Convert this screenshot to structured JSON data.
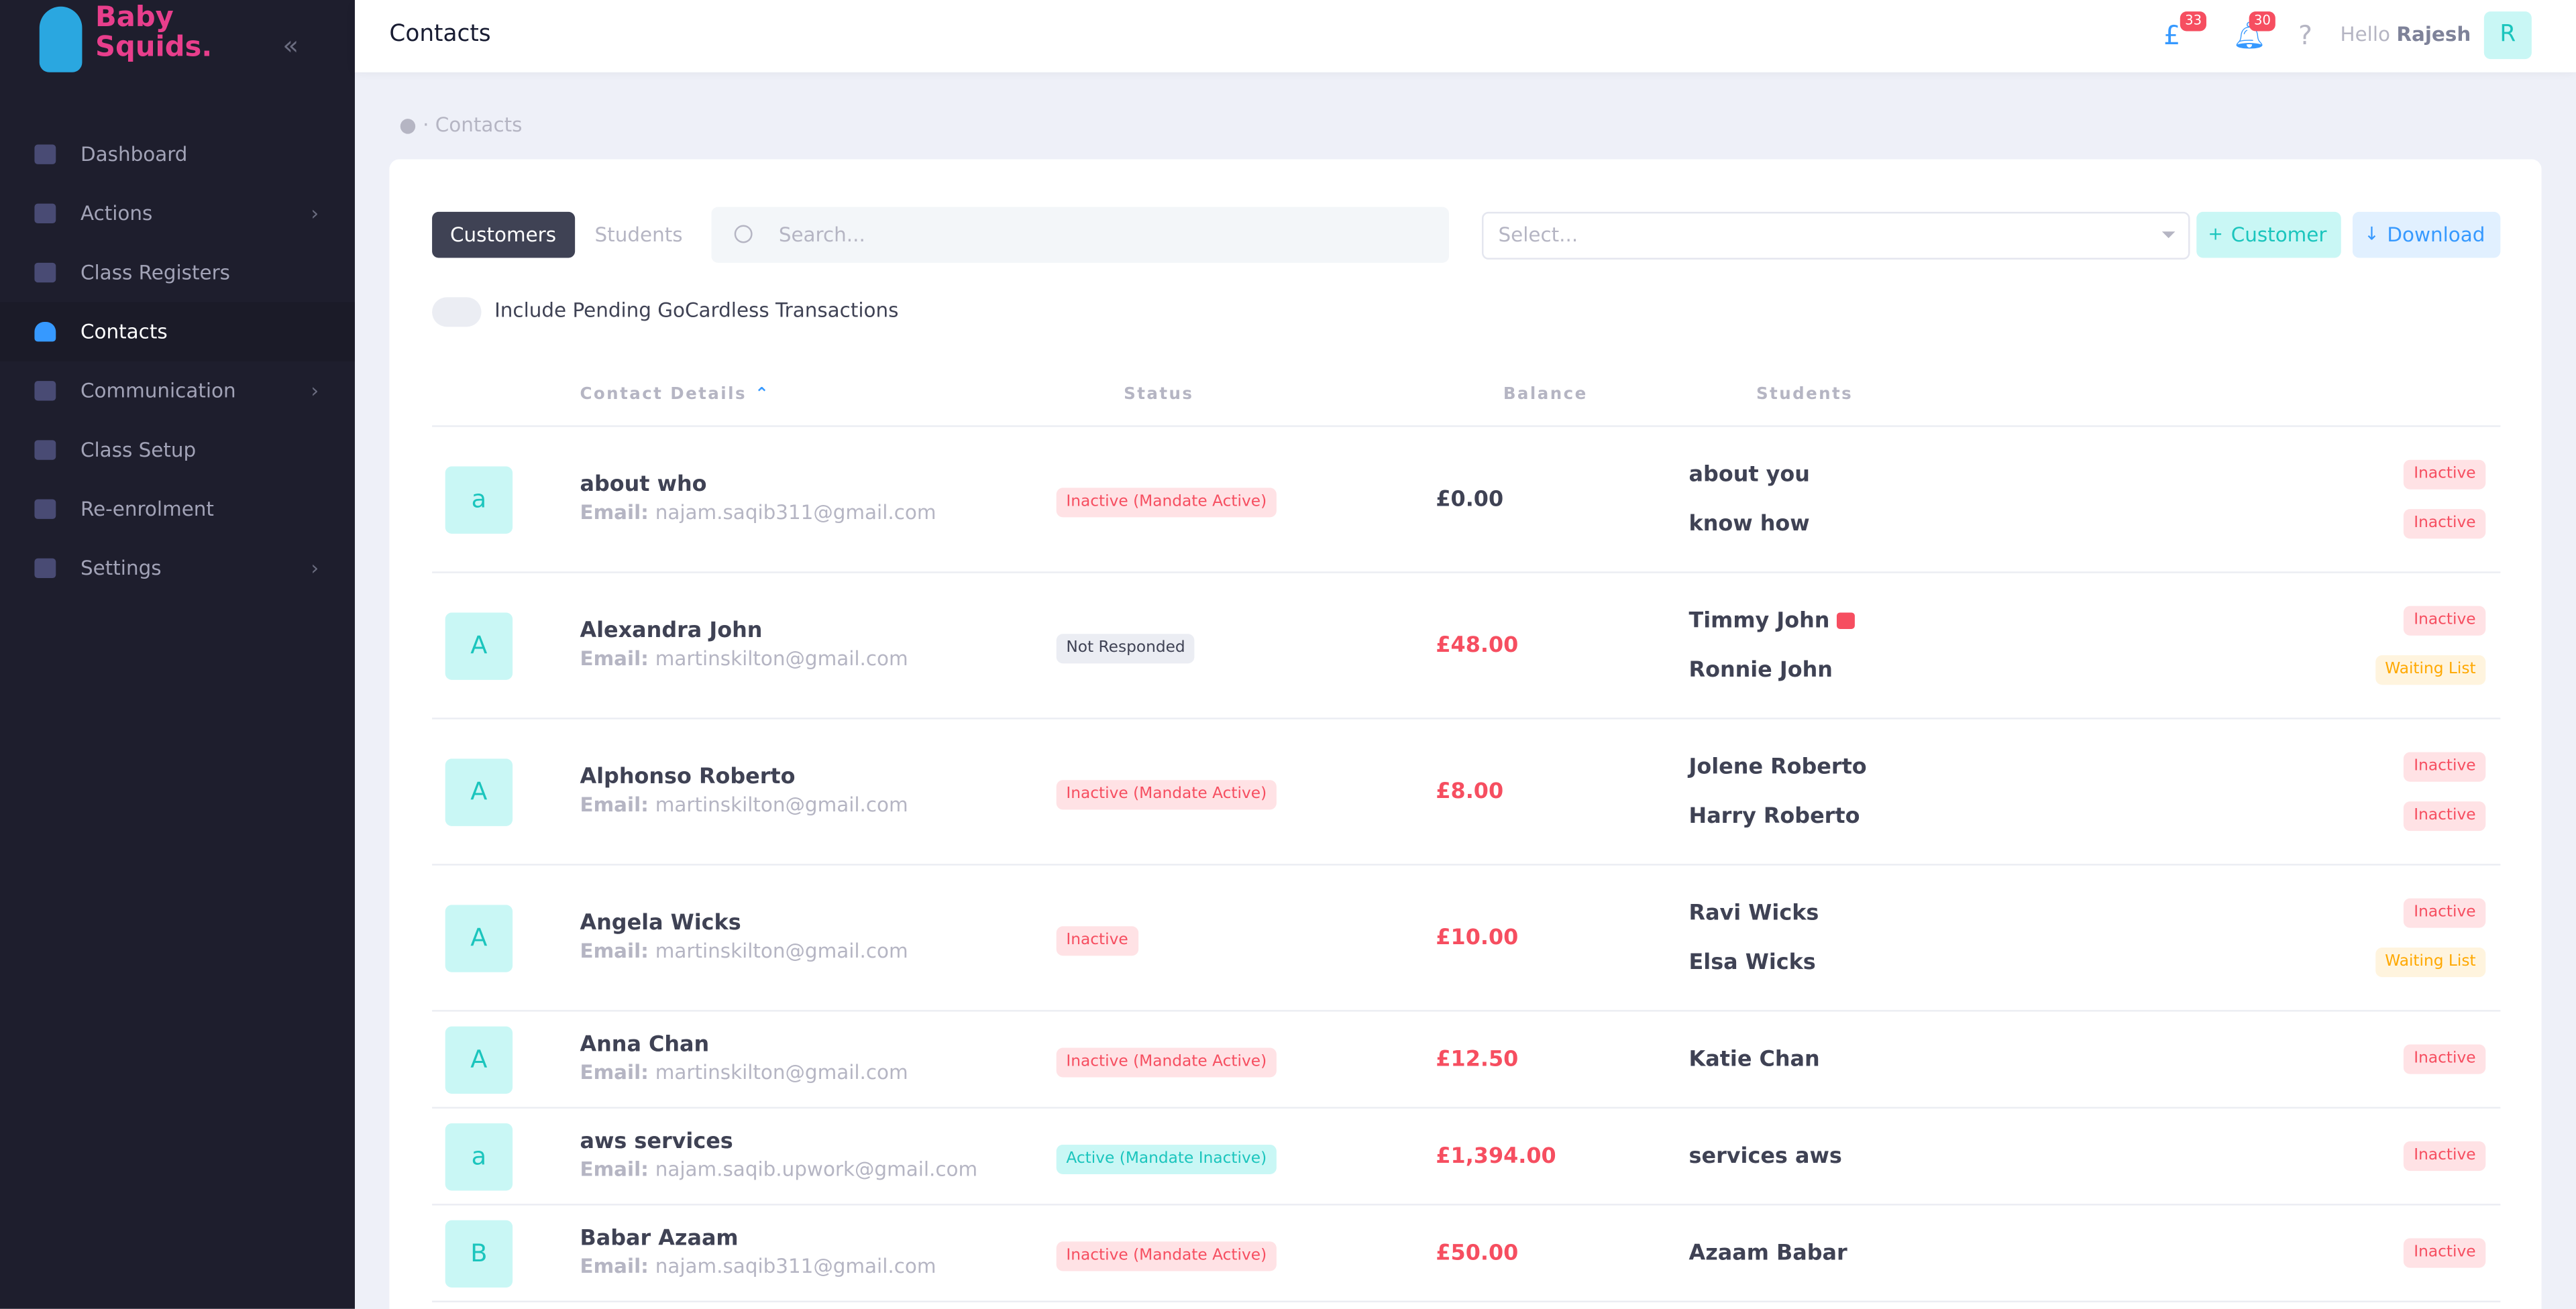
{
  "sidebar": {
    "logo": [
      "Baby",
      "Squids."
    ],
    "nav": [
      {
        "label": "Dashboard"
      },
      {
        "label": "Actions",
        "sub": true
      },
      {
        "label": "Class Registers"
      },
      {
        "label": "Contacts",
        "active": true
      },
      {
        "label": "Communication",
        "sub": true
      },
      {
        "label": "Class Setup"
      },
      {
        "label": "Re-enrolment"
      },
      {
        "label": "Settings",
        "sub": true
      }
    ]
  },
  "header": {
    "title": "Contacts",
    "pound_badge": 33,
    "bell_badge": 30,
    "hello": "Hello",
    "user": "Rajesh",
    "avatar": "R"
  },
  "breadcrumb": "Contacts",
  "toolbar": {
    "tabs": [
      "Customers",
      "Students"
    ],
    "search": "Search...",
    "select": "Select...",
    "customer_button": "Customer",
    "download_button": "Download",
    "toggle_label": "Include Pending GoCardless Transactions"
  },
  "table": {
    "columns": [
      "Contact Details",
      "Status",
      "Balance",
      "Students"
    ],
    "email_label": "Email:",
    "rows": [
      {
        "avatar": "a",
        "name": "about who",
        "email": "najam.saqib311@gmail.com",
        "status": "Inactive (Mandate Active)",
        "balance": "£0.00",
        "students": [
          {
            "name": "about you",
            "status": "Inactive"
          },
          {
            "name": "know how",
            "status": "Inactive"
          }
        ]
      },
      {
        "avatar": "A",
        "name": "Alexandra John",
        "email": "martinskilton@gmail.com",
        "status": "Not Responded",
        "balance": "£48.00",
        "students": [
          {
            "name": "Timmy John",
            "status": "Inactive",
            "medical": true
          },
          {
            "name": "Ronnie John",
            "status": "Waiting List"
          }
        ]
      },
      {
        "avatar": "A",
        "name": "Alphonso Roberto",
        "email": "martinskilton@gmail.com",
        "status": "Inactive (Mandate Active)",
        "balance": "£8.00",
        "students": [
          {
            "name": "Jolene Roberto",
            "status": "Inactive"
          },
          {
            "name": "Harry Roberto",
            "status": "Inactive"
          }
        ]
      },
      {
        "avatar": "A",
        "name": "Angela Wicks",
        "email": "martinskilton@gmail.com",
        "status": "Inactive",
        "balance": "£10.00",
        "students": [
          {
            "name": "Ravi Wicks",
            "status": "Inactive"
          },
          {
            "name": "Elsa Wicks",
            "status": "Waiting List"
          }
        ]
      },
      {
        "avatar": "A",
        "name": "Anna Chan",
        "email": "martinskilton@gmail.com",
        "status": "Inactive (Mandate Active)",
        "balance": "£12.50",
        "students": [
          {
            "name": "Katie Chan",
            "status": "Inactive"
          }
        ]
      },
      {
        "avatar": "a",
        "name": "aws services",
        "email": "najam.saqib.upwork@gmail.com",
        "status": "Active (Mandate Inactive)",
        "balance": "£1,394.00",
        "students": [
          {
            "name": "services aws",
            "status": "Inactive"
          }
        ]
      },
      {
        "avatar": "B",
        "name": "Babar Azaam",
        "email": "najam.saqib311@gmail.com",
        "status": "Inactive (Mandate Active)",
        "balance": "£50.00",
        "students": [
          {
            "name": "Azaam Babar",
            "status": "Inactive"
          }
        ]
      }
    ]
  }
}
